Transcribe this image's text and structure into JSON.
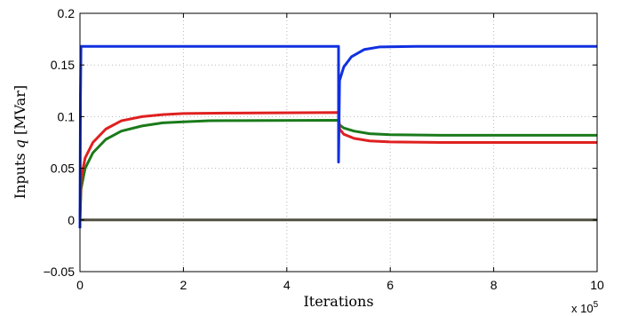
{
  "chart_data": {
    "type": "line",
    "xlabel": "Iterations",
    "ylabel_prefix": "Inputs ",
    "ylabel_var": "q",
    "ylabel_unit": " [MVar]",
    "x_exponent_base": "x 10",
    "x_exponent_power": "5",
    "xlim": [
      0,
      10
    ],
    "ylim": [
      -0.05,
      0.2
    ],
    "x_ticks": [
      0,
      2,
      4,
      6,
      8,
      10
    ],
    "x_tick_labels": [
      "0",
      "2",
      "4",
      "6",
      "8",
      "10"
    ],
    "y_ticks": [
      -0.05,
      0,
      0.05,
      0.1,
      0.15,
      0.2
    ],
    "y_tick_labels": [
      "−0.05",
      "0",
      "0.05",
      "0.1",
      "0.15",
      "0.2"
    ],
    "grid": true,
    "series": [
      {
        "color": "#505040",
        "points": [
          [
            0,
            0
          ],
          [
            10,
            0
          ]
        ]
      },
      {
        "color": "#1a7a1a",
        "points": [
          [
            0,
            0.0
          ],
          [
            0.02,
            0.03
          ],
          [
            0.1,
            0.05
          ],
          [
            0.25,
            0.065
          ],
          [
            0.5,
            0.078
          ],
          [
            0.8,
            0.086
          ],
          [
            1.2,
            0.091
          ],
          [
            1.6,
            0.094
          ],
          [
            2.0,
            0.095
          ],
          [
            2.5,
            0.096
          ],
          [
            3.0,
            0.0962
          ],
          [
            5.0,
            0.0965
          ],
          [
            5.02,
            0.092
          ],
          [
            5.1,
            0.089
          ],
          [
            5.3,
            0.086
          ],
          [
            5.6,
            0.0835
          ],
          [
            6.0,
            0.0825
          ],
          [
            7.0,
            0.082
          ],
          [
            10,
            0.082
          ]
        ]
      },
      {
        "color": "#e02020",
        "points": [
          [
            0,
            0.0
          ],
          [
            0.02,
            0.04
          ],
          [
            0.1,
            0.06
          ],
          [
            0.25,
            0.075
          ],
          [
            0.5,
            0.088
          ],
          [
            0.8,
            0.096
          ],
          [
            1.2,
            0.1
          ],
          [
            1.6,
            0.102
          ],
          [
            2.0,
            0.103
          ],
          [
            3.0,
            0.1035
          ],
          [
            5.0,
            0.104
          ],
          [
            5.02,
            0.088
          ],
          [
            5.1,
            0.083
          ],
          [
            5.3,
            0.079
          ],
          [
            5.6,
            0.0765
          ],
          [
            6.0,
            0.0755
          ],
          [
            7.0,
            0.075
          ],
          [
            10,
            0.075
          ]
        ]
      },
      {
        "color": "#1030e0",
        "points": [
          [
            0,
            -0.008
          ],
          [
            0.01,
            0.12
          ],
          [
            0.02,
            0.168
          ],
          [
            4.98,
            0.168
          ],
          [
            5.0,
            0.168
          ],
          [
            5.0,
            0.056
          ],
          [
            5.02,
            0.135
          ],
          [
            5.1,
            0.148
          ],
          [
            5.25,
            0.158
          ],
          [
            5.5,
            0.165
          ],
          [
            5.8,
            0.1675
          ],
          [
            6.5,
            0.168
          ],
          [
            10,
            0.168
          ]
        ]
      }
    ]
  }
}
